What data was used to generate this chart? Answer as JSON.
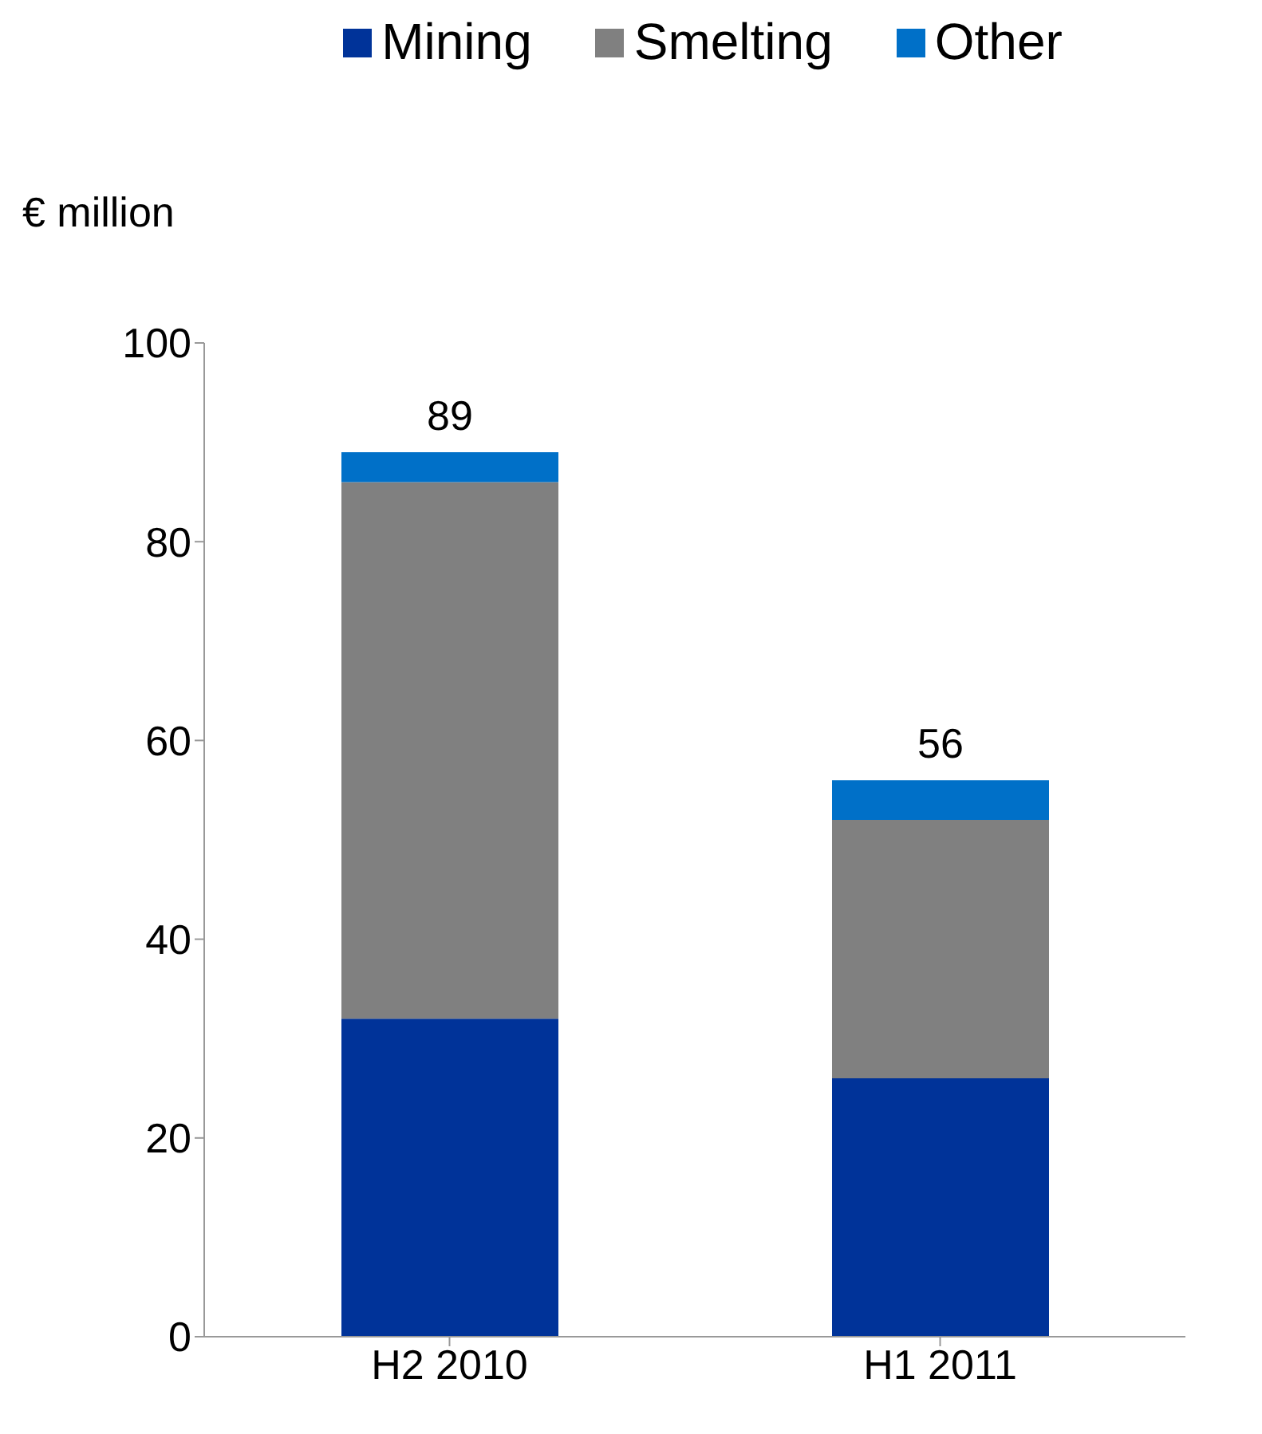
{
  "chart_data": {
    "type": "bar",
    "ylabel": "€ million",
    "categories": [
      "H2 2010",
      "H1 2011"
    ],
    "stacked": true,
    "series": [
      {
        "name": "Mining",
        "color": "#003399",
        "values": [
          32,
          26
        ]
      },
      {
        "name": "Smelting",
        "color": "#808080",
        "values": [
          54,
          26
        ]
      },
      {
        "name": "Other",
        "color": "#0070c8",
        "values": [
          3,
          4
        ]
      }
    ],
    "totals": [
      "89",
      "56"
    ],
    "ylim": [
      0,
      100
    ],
    "yticks": [
      0,
      20,
      40,
      60,
      80,
      100
    ],
    "grid": false,
    "legend": "top"
  }
}
